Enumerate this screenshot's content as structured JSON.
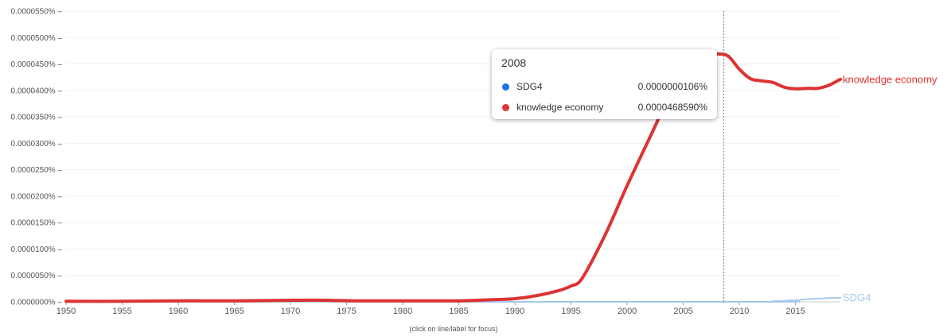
{
  "chart_data": {
    "type": "line",
    "x_ticks": [
      1950,
      1955,
      1960,
      1965,
      1970,
      1975,
      1980,
      1985,
      1990,
      1995,
      2000,
      2005,
      2010,
      2015
    ],
    "y_ticks": [
      "0.0000000%",
      "0.0000050%",
      "0.0000100%",
      "0.0000150%",
      "0.0000200%",
      "0.0000250%",
      "0.0000300%",
      "0.0000350%",
      "0.0000400%",
      "0.0000450%",
      "0.0000500%",
      "0.0000550%"
    ],
    "xlim": [
      1950,
      2019
    ],
    "ylim": [
      0,
      5.5e-05
    ],
    "y_unit": "%",
    "grid": true,
    "footnote": "(click on line/label for focus)",
    "series": [
      {
        "name": "knowledge economy",
        "color": "#dd3333",
        "x": [
          1950,
          1955,
          1960,
          1965,
          1970,
          1973,
          1976,
          1980,
          1985,
          1988,
          1990,
          1992,
          1994,
          1995,
          1996,
          1998,
          2000,
          2002,
          2004,
          2006,
          2007,
          2008,
          2009,
          2010,
          2011,
          2012,
          2013,
          2014,
          2015,
          2016,
          2017,
          2018,
          2019
        ],
        "y": [
          1e-07,
          1e-07,
          2e-07,
          2e-07,
          3e-07,
          3e-07,
          2e-07,
          2e-07,
          2e-07,
          4e-07,
          6e-07,
          1.2e-06,
          2.2e-06,
          3e-06,
          4.5e-06,
          1.25e-05,
          2.2e-05,
          3.1e-05,
          3.98e-05,
          4.55e-05,
          4.67e-05,
          4.69e-05,
          4.65e-05,
          4.4e-05,
          4.22e-05,
          4.18e-05,
          4.15e-05,
          4.06e-05,
          4.03e-05,
          4.04e-05,
          4.04e-05,
          4.1e-05,
          4.21e-05
        ]
      },
      {
        "name": "SDG4",
        "color": "#a8c8ec",
        "x": [
          1950,
          2010,
          2013,
          2015,
          2016,
          2017,
          2018,
          2019
        ],
        "y": [
          0,
          0,
          1e-07,
          3e-07,
          5e-07,
          6e-07,
          7e-07,
          8e-07
        ]
      }
    ],
    "hover": {
      "x": 2008.6,
      "year": "2008",
      "rows": [
        {
          "name": "SDG4",
          "value": "0.0000000106%",
          "color": "#1a73e8"
        },
        {
          "name": "knowledge economy",
          "value": "0.0000468590%",
          "color": "#dd3333"
        }
      ]
    }
  }
}
